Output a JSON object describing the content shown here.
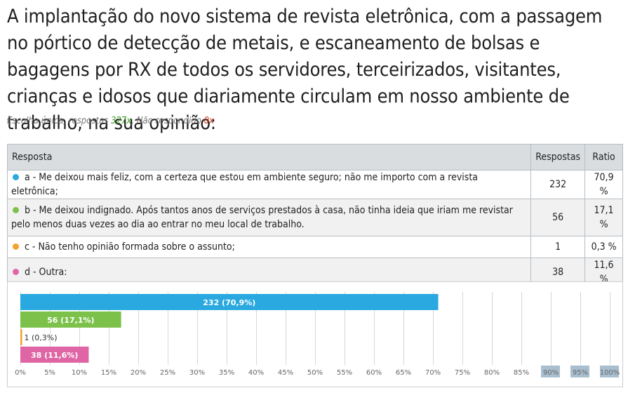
{
  "question": {
    "text": "A implantação do novo sistema de revista eletrônica, com a passagem no pórtico de detecção de metais, e escaneamento de bolsas e bagagens por RX de todos os servidores, terceirizados, visitantes, crianças e idosos que diariamente circulam em nosso ambiente de trabalho, na sua opinião:",
    "meta_prefix": "Escolha única, respostas ",
    "responses_count": "327x",
    "meta_middle": ", Não respondido ",
    "unanswered_count": "0x"
  },
  "table": {
    "headers": {
      "answer": "Resposta",
      "responses": "Respostas",
      "ratio": "Ratio"
    },
    "rows": [
      {
        "label": "a - Me deixou mais feliz, com a certeza que estou em ambiente seguro; não me importo com a revista eletrônica;",
        "responses": "232",
        "ratio": "70,9 %",
        "color": "#2aa9e0"
      },
      {
        "label": "b - Me deixou indignado. Após tantos anos de serviços prestados à casa, não tinha ideia que iriam me revistar pelo menos duas vezes ao dia ao entrar no meu local de trabalho.",
        "responses": "56",
        "ratio": "17,1 %",
        "color": "#7cc24a"
      },
      {
        "label": "c - Não tenho opinião formada sobre o assunto;",
        "responses": "1",
        "ratio": "0,3 %",
        "color": "#f3a22b"
      },
      {
        "label": "d - Outra:",
        "responses": "38",
        "ratio": "11,6 %",
        "color": "#e065a5"
      }
    ]
  },
  "chart_data": {
    "type": "bar",
    "orientation": "horizontal",
    "categories": [
      "a",
      "b",
      "c",
      "d"
    ],
    "values": [
      70.9,
      17.1,
      0.3,
      11.6
    ],
    "data_labels": [
      "232 (70,9%)",
      "56 (17,1%)",
      "1 (0,3%)",
      "38 (11,6%)"
    ],
    "colors": [
      "#2aa9e0",
      "#7cc24a",
      "#f3a22b",
      "#e065a5"
    ],
    "xlim": [
      0,
      100
    ],
    "x_ticks": [
      "0%",
      "5%",
      "10%",
      "15%",
      "20%",
      "25%",
      "30%",
      "35%",
      "40%",
      "45%",
      "50%",
      "55%",
      "60%",
      "65%",
      "70%",
      "75%",
      "80%",
      "85%",
      "90%",
      "95%",
      "100%"
    ],
    "highlighted_ticks": [
      "90%",
      "95%",
      "100%"
    ],
    "grid": true,
    "title": "",
    "xlabel": "",
    "ylabel": ""
  }
}
